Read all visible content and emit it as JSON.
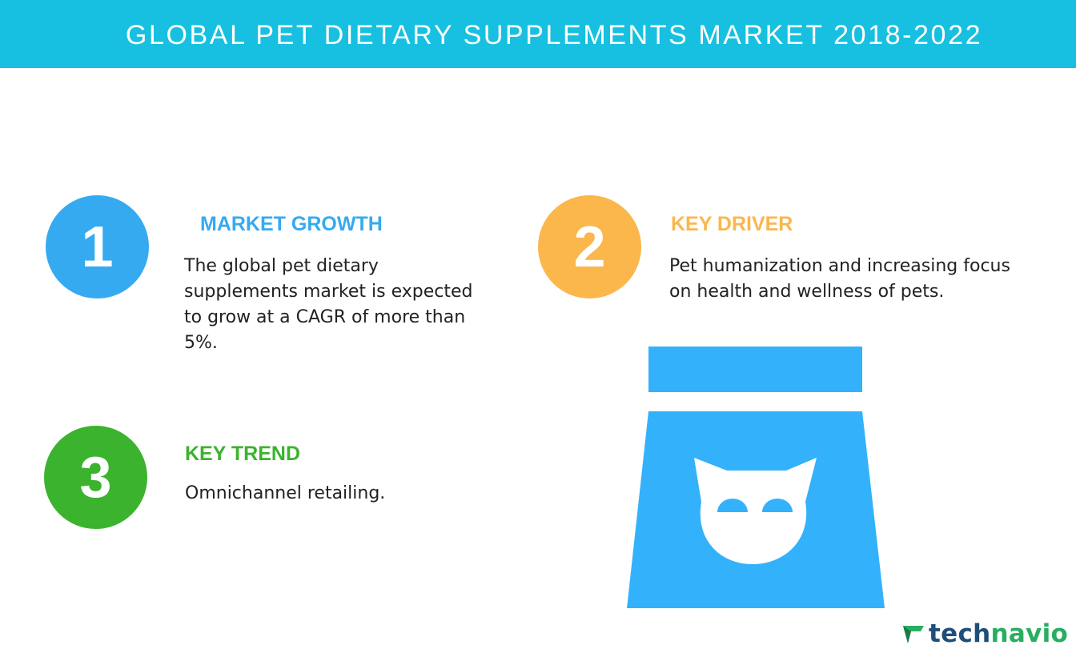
{
  "header": {
    "title": "GLOBAL PET DIETARY SUPPLEMENTS MARKET 2018-2022",
    "background_color": "#17c0e0"
  },
  "sections": [
    {
      "number": "1",
      "heading": "MARKET GROWTH",
      "text_lines": [
        "The global pet dietary",
        "supplements market is expected",
        "to grow at a CAGR of more than",
        "5%."
      ],
      "color": "#35aaf1"
    },
    {
      "number": "2",
      "heading": "KEY DRIVER",
      "text_lines": [
        "Pet humanization and increasing focus",
        "on health and wellness of pets."
      ],
      "color": "#fbb64c"
    },
    {
      "number": "3",
      "heading": "KEY TREND",
      "text_lines": [
        "Omnichannel retailing."
      ],
      "color": "#3bb32e"
    }
  ],
  "illustration": {
    "icon": "pet-food-bag-cat-icon",
    "color": "#33b2fb"
  },
  "logo": {
    "part1": "tech",
    "part2": "navio",
    "icon": "technavio-arrow-icon"
  }
}
